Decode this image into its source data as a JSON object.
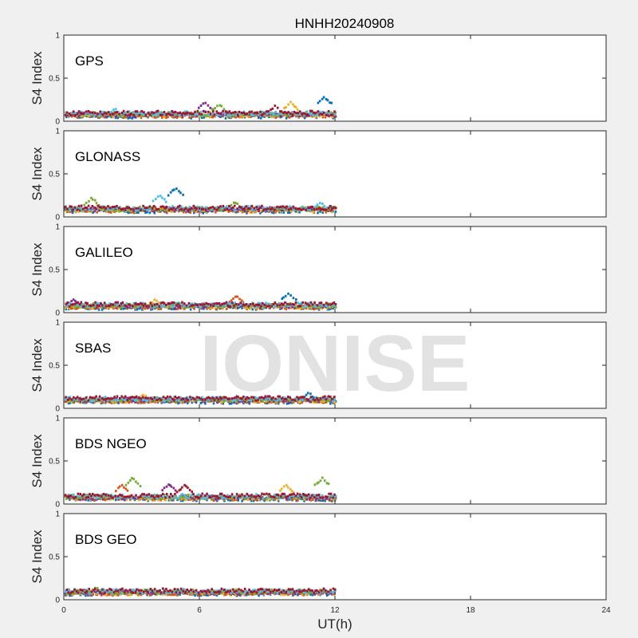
{
  "title": "HNHH20240908",
  "watermark": "IONISE",
  "chart_data": {
    "type": "scatter",
    "title": "HNHH20240908",
    "xlabel": "UT(h)",
    "xlim": [
      0,
      24
    ],
    "x_ticks": [
      0,
      6,
      12,
      18,
      24
    ],
    "x_tick_labels": [
      "0",
      "6",
      "12",
      "18",
      "24"
    ],
    "series_colors": [
      "#0072BD",
      "#D95319",
      "#EDB120",
      "#7E2F8E",
      "#77AC30",
      "#4DBEEE",
      "#A2142F"
    ],
    "panels": [
      {
        "label": "GPS",
        "ylabel": "S4 Index",
        "ylim": [
          0,
          1
        ],
        "y_ticks": [
          0,
          0.5,
          1
        ],
        "y_tick_labels": [
          "0",
          "0.5",
          "1"
        ],
        "x_range": [
          0,
          12
        ],
        "baseline": 0.08,
        "spikes": [
          {
            "t": 2.2,
            "s4": 0.15,
            "color_index": 5
          },
          {
            "t": 6.2,
            "s4": 0.22,
            "color_index": 3
          },
          {
            "t": 6.8,
            "s4": 0.2,
            "color_index": 4
          },
          {
            "t": 9.3,
            "s4": 0.18,
            "color_index": 6
          },
          {
            "t": 10.0,
            "s4": 0.22,
            "color_index": 2
          },
          {
            "t": 11.5,
            "s4": 0.28,
            "color_index": 0
          }
        ]
      },
      {
        "label": "GLONASS",
        "ylabel": "S4 Index",
        "ylim": [
          0,
          1
        ],
        "y_ticks": [
          0,
          0.5,
          1
        ],
        "y_tick_labels": [
          "0",
          "0.5",
          "1"
        ],
        "x_range": [
          0,
          12
        ],
        "baseline": 0.09,
        "spikes": [
          {
            "t": 1.2,
            "s4": 0.22,
            "color_index": 4
          },
          {
            "t": 4.2,
            "s4": 0.25,
            "color_index": 5
          },
          {
            "t": 4.9,
            "s4": 0.33,
            "color_index": 0
          },
          {
            "t": 7.5,
            "s4": 0.18,
            "color_index": 4
          },
          {
            "t": 11.3,
            "s4": 0.17,
            "color_index": 5
          }
        ]
      },
      {
        "label": "GALILEO",
        "ylabel": "S4 Index",
        "ylim": [
          0,
          1
        ],
        "y_ticks": [
          0,
          0.5,
          1
        ],
        "y_tick_labels": [
          "0",
          "0.5",
          "1"
        ],
        "x_range": [
          0,
          12
        ],
        "baseline": 0.08,
        "spikes": [
          {
            "t": 0.4,
            "s4": 0.16,
            "color_index": 3
          },
          {
            "t": 4.0,
            "s4": 0.15,
            "color_index": 2
          },
          {
            "t": 7.6,
            "s4": 0.2,
            "color_index": 1
          },
          {
            "t": 9.9,
            "s4": 0.23,
            "color_index": 0
          }
        ]
      },
      {
        "label": "SBAS",
        "ylabel": "S4 Index",
        "ylim": [
          0,
          1
        ],
        "y_ticks": [
          0,
          0.5,
          1
        ],
        "y_tick_labels": [
          "0",
          "0.5",
          "1"
        ],
        "x_range": [
          0,
          12
        ],
        "baseline": 0.1,
        "spikes": [
          {
            "t": 3.5,
            "s4": 0.16,
            "color_index": 2
          },
          {
            "t": 10.8,
            "s4": 0.18,
            "color_index": 0
          }
        ]
      },
      {
        "label": "BDS NGEO",
        "ylabel": "S4 Index",
        "ylim": [
          0,
          1
        ],
        "y_ticks": [
          0,
          0.5,
          1
        ],
        "y_tick_labels": [
          "0",
          "0.5",
          "1"
        ],
        "x_range": [
          0,
          12
        ],
        "baseline": 0.08,
        "spikes": [
          {
            "t": 2.5,
            "s4": 0.22,
            "color_index": 1
          },
          {
            "t": 3.0,
            "s4": 0.3,
            "color_index": 4
          },
          {
            "t": 4.6,
            "s4": 0.23,
            "color_index": 3
          },
          {
            "t": 5.3,
            "s4": 0.22,
            "color_index": 6
          },
          {
            "t": 9.8,
            "s4": 0.22,
            "color_index": 2
          },
          {
            "t": 11.4,
            "s4": 0.3,
            "color_index": 4
          }
        ]
      },
      {
        "label": "BDS GEO",
        "ylabel": "S4 Index",
        "ylim": [
          0,
          1
        ],
        "y_ticks": [
          0,
          0.5,
          1
        ],
        "y_tick_labels": [
          "0",
          "0.5",
          "1"
        ],
        "x_range": [
          0,
          12
        ],
        "baseline": 0.09,
        "spikes": [
          {
            "t": 1.4,
            "s4": 0.15,
            "color_index": 4
          }
        ]
      }
    ]
  }
}
